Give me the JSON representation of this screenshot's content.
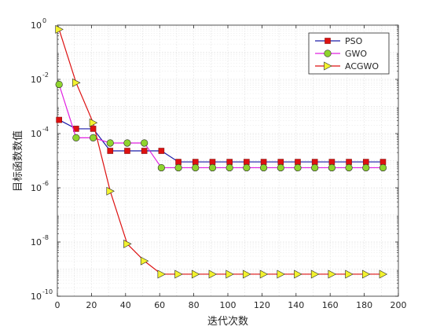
{
  "chart_data": {
    "type": "line",
    "title": "",
    "xlabel": "迭代次数",
    "ylabel": "目标函数数值",
    "xlim": [
      0,
      200
    ],
    "ylim_log10": [
      -10,
      0
    ],
    "yscale": "log",
    "grid": true,
    "x_ticks": [
      0,
      20,
      40,
      60,
      80,
      100,
      120,
      140,
      160,
      180,
      200
    ],
    "y_tick_exponents": [
      0,
      -2,
      -4,
      -6,
      -8,
      -10
    ],
    "legend": {
      "placement": "top-right"
    },
    "x": [
      1,
      11,
      21,
      31,
      41,
      51,
      61,
      71,
      81,
      91,
      101,
      111,
      121,
      131,
      141,
      151,
      161,
      171,
      181,
      191
    ],
    "series": [
      {
        "name": "PSO",
        "color": "#1a1aa8",
        "marker": "square",
        "marker_fill": "#dd1111",
        "values": [
          0.00032,
          0.00015,
          0.00015,
          2.3e-05,
          2.3e-05,
          2.3e-05,
          2.3e-05,
          9e-06,
          9e-06,
          9e-06,
          9e-06,
          9e-06,
          9e-06,
          9e-06,
          9e-06,
          9e-06,
          9e-06,
          9e-06,
          9e-06,
          9e-06
        ]
      },
      {
        "name": "GWO",
        "color": "#e020e0",
        "marker": "circle",
        "marker_fill": "#8fd42e",
        "values": [
          0.0065,
          7e-05,
          7e-05,
          4.5e-05,
          4.5e-05,
          4.5e-05,
          5.5e-06,
          5.5e-06,
          5.5e-06,
          5.5e-06,
          5.5e-06,
          5.5e-06,
          5.5e-06,
          5.5e-06,
          5.5e-06,
          5.5e-06,
          5.5e-06,
          5.5e-06,
          5.5e-06,
          5.5e-06
        ]
      },
      {
        "name": "ACGWO",
        "color": "#dd1111",
        "marker": "triangle-right",
        "marker_fill": "#f2f22e",
        "values": [
          0.7,
          0.0075,
          0.00025,
          7.5e-07,
          8.5e-09,
          2e-09,
          6.5e-10,
          6.5e-10,
          6.5e-10,
          6.5e-10,
          6.5e-10,
          6.5e-10,
          6.5e-10,
          6.5e-10,
          6.5e-10,
          6.5e-10,
          6.5e-10,
          6.5e-10,
          6.5e-10,
          6.5e-10
        ]
      }
    ]
  }
}
